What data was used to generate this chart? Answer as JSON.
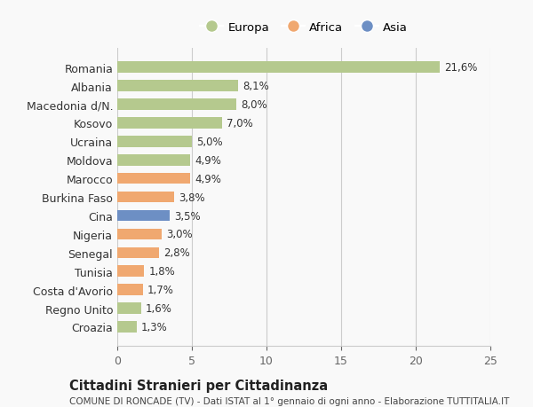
{
  "categories": [
    "Romania",
    "Albania",
    "Macedonia d/N.",
    "Kosovo",
    "Ucraina",
    "Moldova",
    "Marocco",
    "Burkina Faso",
    "Cina",
    "Nigeria",
    "Senegal",
    "Tunisia",
    "Costa d'Avorio",
    "Regno Unito",
    "Croazia"
  ],
  "values": [
    21.6,
    8.1,
    8.0,
    7.0,
    5.0,
    4.9,
    4.9,
    3.8,
    3.5,
    3.0,
    2.8,
    1.8,
    1.7,
    1.6,
    1.3
  ],
  "labels": [
    "21,6%",
    "8,1%",
    "8,0%",
    "7,0%",
    "5,0%",
    "4,9%",
    "4,9%",
    "3,8%",
    "3,5%",
    "3,0%",
    "2,8%",
    "1,8%",
    "1,7%",
    "1,6%",
    "1,3%"
  ],
  "continents": [
    "Europa",
    "Europa",
    "Europa",
    "Europa",
    "Europa",
    "Europa",
    "Africa",
    "Africa",
    "Asia",
    "Africa",
    "Africa",
    "Africa",
    "Africa",
    "Europa",
    "Europa"
  ],
  "colors": {
    "Europa": "#b5c98e",
    "Africa": "#f0a870",
    "Asia": "#6d8fc4"
  },
  "legend_entries": [
    "Europa",
    "Africa",
    "Asia"
  ],
  "xlim": [
    0,
    25
  ],
  "xticks": [
    0,
    5,
    10,
    15,
    20,
    25
  ],
  "title": "Cittadini Stranieri per Cittadinanza",
  "subtitle": "COMUNE DI RONCADE (TV) - Dati ISTAT al 1° gennaio di ogni anno - Elaborazione TUTTITALIA.IT",
  "bg_color": "#f9f9f9",
  "grid_color": "#cccccc"
}
